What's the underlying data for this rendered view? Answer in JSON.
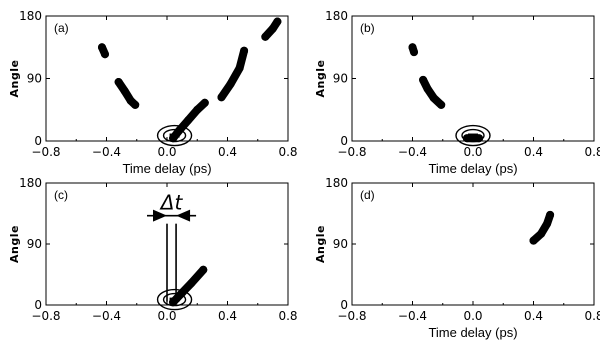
{
  "chart_data": [
    {
      "type": "scatter",
      "panel_label": "(a)",
      "xlabel": "Time delay (ps)",
      "ylabel": "Angle",
      "xlim": [
        -0.8,
        0.8
      ],
      "ylim": [
        0,
        180
      ],
      "xticks": [
        "−0.8",
        "−0.4",
        "0.0",
        "0.4",
        "0.8"
      ],
      "yticks": [
        "0",
        "90",
        "180"
      ],
      "series": [
        {
          "values": [
            [
              -0.43,
              135
            ],
            [
              -0.41,
              125
            ]
          ]
        },
        {
          "values": [
            [
              -0.32,
              85
            ],
            [
              -0.28,
              72
            ],
            [
              -0.24,
              58
            ],
            [
              -0.21,
              52
            ]
          ]
        },
        {
          "values": [
            [
              0.04,
              4
            ],
            [
              0.08,
              15
            ],
            [
              0.14,
              30
            ],
            [
              0.2,
              45
            ],
            [
              0.25,
              55
            ]
          ]
        },
        {
          "values": [
            [
              0.36,
              63
            ],
            [
              0.42,
              82
            ],
            [
              0.48,
              105
            ],
            [
              0.51,
              130
            ]
          ]
        },
        {
          "values": [
            [
              0.65,
              150
            ],
            [
              0.7,
              162
            ],
            [
              0.73,
              172
            ]
          ]
        }
      ],
      "marked_points": [
        [
          0.05,
          5
        ]
      ]
    },
    {
      "type": "scatter",
      "panel_label": "(b)",
      "xlabel": "Time delay (ps)",
      "ylabel": "Angle",
      "xlim": [
        -0.8,
        0.8
      ],
      "ylim": [
        0,
        180
      ],
      "xticks": [
        "−0.8",
        "−0.4",
        "0.0",
        "0.4",
        "0.8"
      ],
      "yticks": [
        "0",
        "90",
        "180"
      ],
      "series": [
        {
          "values": [
            [
              -0.4,
              135
            ],
            [
              -0.39,
              128
            ]
          ]
        },
        {
          "values": [
            [
              -0.33,
              88
            ],
            [
              -0.3,
              75
            ],
            [
              -0.26,
              62
            ],
            [
              -0.21,
              52
            ]
          ]
        },
        {
          "values": [
            [
              -0.04,
              4
            ],
            [
              0.04,
              4
            ]
          ]
        }
      ],
      "marked_points": [
        [
          0.0,
          5
        ]
      ]
    },
    {
      "type": "scatter",
      "panel_label": "(c)",
      "xlabel": "",
      "ylabel": "Angle",
      "xlim": [
        -0.8,
        0.8
      ],
      "ylim": [
        0,
        180
      ],
      "xticks": [
        "−0.8",
        "−0.4",
        "0.0",
        "0.4",
        "0.8"
      ],
      "yticks": [
        "0",
        "90",
        "180"
      ],
      "series": [
        {
          "values": [
            [
              0.04,
              4
            ],
            [
              0.1,
              18
            ],
            [
              0.16,
              32
            ],
            [
              0.24,
              52
            ]
          ]
        }
      ],
      "marked_points": [
        [
          0.05,
          5
        ]
      ],
      "annotation": {
        "text": "Δt",
        "x_left": 0.0,
        "x_right": 0.06,
        "y_top": 120,
        "y_bottom": 5
      }
    },
    {
      "type": "scatter",
      "panel_label": "(d)",
      "xlabel": "Time delay (ps)",
      "ylabel": "Angle",
      "xlim": [
        -0.8,
        0.8
      ],
      "ylim": [
        0,
        180
      ],
      "xticks": [
        "−0.8",
        "−0.4",
        "0.0",
        "0.4",
        "0.8"
      ],
      "yticks": [
        "0",
        "90",
        "180"
      ],
      "series": [
        {
          "values": [
            [
              0.4,
              95
            ],
            [
              0.45,
              105
            ],
            [
              0.49,
              120
            ],
            [
              0.51,
              133
            ]
          ]
        }
      ],
      "marked_points": []
    }
  ]
}
